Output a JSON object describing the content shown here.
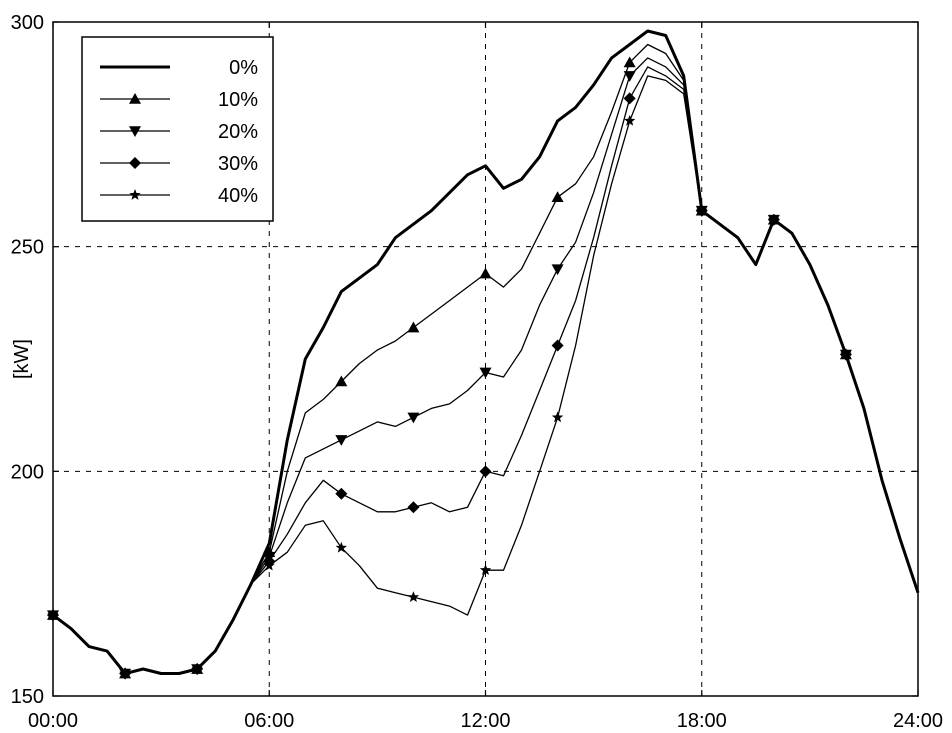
{
  "chart_data": {
    "type": "line",
    "title": "",
    "xlabel": "",
    "ylabel": "[kW]",
    "xlim": [
      "00:00",
      "24:00"
    ],
    "ylim": [
      150,
      300
    ],
    "x_ticks": [
      "00:00",
      "06:00",
      "12:00",
      "18:00",
      "24:00"
    ],
    "y_ticks": [
      "150",
      "200",
      "250",
      "300"
    ],
    "grid": "dashed",
    "legend_position": "top-left",
    "x_unit": "hours",
    "series": [
      {
        "name": "0%",
        "marker": "none",
        "x": [
          0,
          0.5,
          1,
          1.5,
          2,
          2.5,
          3,
          3.5,
          4,
          4.5,
          5,
          5.5,
          6,
          6.5,
          7,
          7.5,
          8,
          8.5,
          9,
          9.5,
          10,
          10.5,
          11,
          11.5,
          12,
          12.5,
          13,
          13.5,
          14,
          14.5,
          15,
          15.5,
          16,
          16.5,
          17,
          17.5,
          18,
          18.5,
          19,
          19.5,
          20,
          20.5,
          21,
          21.5,
          22,
          22.5,
          23,
          23.5,
          24
        ],
        "y": [
          168,
          165,
          161,
          160,
          155,
          156,
          155,
          155,
          156,
          160,
          167,
          175,
          184,
          207,
          225,
          232,
          240,
          243,
          246,
          252,
          255,
          258,
          262,
          266,
          268,
          263,
          265,
          270,
          278,
          281,
          286,
          292,
          295,
          298,
          297,
          288,
          258,
          255,
          252,
          246,
          256,
          253,
          246,
          237,
          226,
          214,
          198,
          185,
          173
        ]
      },
      {
        "name": "10%",
        "marker": "triangle-up",
        "x": [
          0,
          0.5,
          1,
          1.5,
          2,
          2.5,
          3,
          3.5,
          4,
          4.5,
          5,
          5.5,
          6,
          6.5,
          7,
          7.5,
          8,
          8.5,
          9,
          9.5,
          10,
          10.5,
          11,
          11.5,
          12,
          12.5,
          13,
          13.5,
          14,
          14.5,
          15,
          15.5,
          16,
          16.5,
          17,
          17.5,
          18,
          18.5,
          19,
          19.5,
          20,
          20.5,
          21,
          21.5,
          22,
          22.5,
          23,
          23.5,
          24
        ],
        "y": [
          168,
          165,
          161,
          160,
          155,
          156,
          155,
          155,
          156,
          160,
          167,
          175,
          182,
          200,
          213,
          216,
          220,
          224,
          227,
          229,
          232,
          235,
          238,
          241,
          244,
          241,
          245,
          253,
          261,
          264,
          270,
          280,
          291,
          295,
          293,
          287,
          258,
          255,
          252,
          246,
          256,
          253,
          246,
          237,
          226,
          214,
          198,
          185,
          173
        ]
      },
      {
        "name": "20%",
        "marker": "triangle-down",
        "x": [
          0,
          0.5,
          1,
          1.5,
          2,
          2.5,
          3,
          3.5,
          4,
          4.5,
          5,
          5.5,
          6,
          6.5,
          7,
          7.5,
          8,
          8.5,
          9,
          9.5,
          10,
          10.5,
          11,
          11.5,
          12,
          12.5,
          13,
          13.5,
          14,
          14.5,
          15,
          15.5,
          16,
          16.5,
          17,
          17.5,
          18,
          18.5,
          19,
          19.5,
          20,
          20.5,
          21,
          21.5,
          22,
          22.5,
          23,
          23.5,
          24
        ],
        "y": [
          168,
          165,
          161,
          160,
          155,
          156,
          155,
          155,
          156,
          160,
          167,
          175,
          181,
          193,
          203,
          205,
          207,
          209,
          211,
          210,
          212,
          214,
          215,
          218,
          222,
          221,
          227,
          237,
          245,
          251,
          262,
          275,
          288,
          292,
          290,
          286,
          258,
          255,
          252,
          246,
          256,
          253,
          246,
          237,
          226,
          214,
          198,
          185,
          173
        ]
      },
      {
        "name": "30%",
        "marker": "diamond",
        "x": [
          0,
          0.5,
          1,
          1.5,
          2,
          2.5,
          3,
          3.5,
          4,
          4.5,
          5,
          5.5,
          6,
          6.5,
          7,
          7.5,
          8,
          8.5,
          9,
          9.5,
          10,
          10.5,
          11,
          11.5,
          12,
          12.5,
          13,
          13.5,
          14,
          14.5,
          15,
          15.5,
          16,
          16.5,
          17,
          17.5,
          18,
          18.5,
          19,
          19.5,
          20,
          20.5,
          21,
          21.5,
          22,
          22.5,
          23,
          23.5,
          24
        ],
        "y": [
          168,
          165,
          161,
          160,
          155,
          156,
          155,
          155,
          156,
          160,
          167,
          175,
          180,
          186,
          193,
          198,
          195,
          193,
          191,
          191,
          192,
          193,
          191,
          192,
          200,
          199,
          208,
          218,
          228,
          238,
          252,
          268,
          283,
          290,
          288,
          285,
          258,
          255,
          252,
          246,
          256,
          253,
          246,
          237,
          226,
          214,
          198,
          185,
          173
        ]
      },
      {
        "name": "40%",
        "marker": "star",
        "x": [
          0,
          0.5,
          1,
          1.5,
          2,
          2.5,
          3,
          3.5,
          4,
          4.5,
          5,
          5.5,
          6,
          6.5,
          7,
          7.5,
          8,
          8.5,
          9,
          9.5,
          10,
          10.5,
          11,
          11.5,
          12,
          12.5,
          13,
          13.5,
          14,
          14.5,
          15,
          15.5,
          16,
          16.5,
          17,
          17.5,
          18,
          18.5,
          19,
          19.5,
          20,
          20.5,
          21,
          21.5,
          22,
          22.5,
          23,
          23.5,
          24
        ],
        "y": [
          168,
          165,
          161,
          160,
          155,
          156,
          155,
          155,
          156,
          160,
          167,
          175,
          179,
          182,
          188,
          189,
          183,
          179,
          174,
          173,
          172,
          171,
          170,
          168,
          178,
          178,
          188,
          200,
          212,
          228,
          248,
          264,
          278,
          288,
          287,
          284,
          258,
          255,
          252,
          246,
          256,
          253,
          246,
          237,
          226,
          214,
          198,
          185,
          173
        ]
      }
    ]
  }
}
